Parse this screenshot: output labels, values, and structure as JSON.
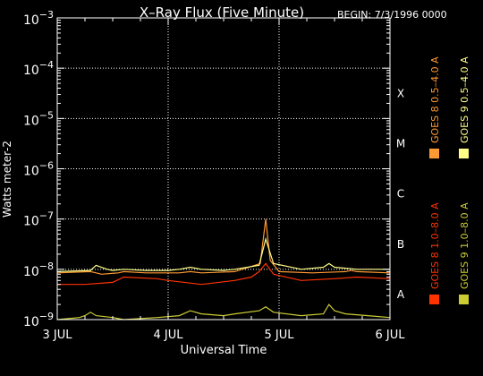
{
  "chart_data": {
    "type": "line",
    "title": "X–Ray Flux (Five Minute)",
    "begin_label": "BEGIN: 7/3/1996 0000",
    "xlabel": "Universal Time",
    "ylabel": "Watts meter‑2",
    "y_scale": "log",
    "ylim": [
      1e-09,
      0.001
    ],
    "x_ticks": [
      "3 JUL",
      "4 JUL",
      "5 JUL",
      "6 JUL"
    ],
    "y_ticks": [
      {
        "base": "10",
        "exp": "−3"
      },
      {
        "base": "10",
        "exp": "−4"
      },
      {
        "base": "10",
        "exp": "−5"
      },
      {
        "base": "10",
        "exp": "−6"
      },
      {
        "base": "10",
        "exp": "−7"
      },
      {
        "base": "10",
        "exp": "−8"
      },
      {
        "base": "10",
        "exp": "−9"
      }
    ],
    "flare_classes": [
      "X",
      "M",
      "C",
      "B",
      "A"
    ],
    "grid": true,
    "legend_position": "right-vertical",
    "colors": {
      "goes8_long": "#ff3300",
      "goes8_short": "#ff9933",
      "goes9_long": "#cccc33",
      "goes9_short": "#ffff88"
    },
    "legend": [
      {
        "label": "GOES 8 1.0–8.0 A",
        "color": "#ff3300"
      },
      {
        "label": "GOES 8 0.5–4.0 A",
        "color": "#ff9933"
      },
      {
        "label": "GOES 9 1.0–8.0 A",
        "color": "#cccc33"
      },
      {
        "label": "GOES 9 0.5–4.0 A",
        "color": "#ffff88"
      }
    ],
    "series": [
      {
        "name": "GOES 8 1.0–8.0 A",
        "color": "#ff3300",
        "x": [
          0,
          0.25,
          0.5,
          0.6,
          0.9,
          1.0,
          1.3,
          1.6,
          1.75,
          1.82,
          1.88,
          1.95,
          2.2,
          2.5,
          2.7,
          3.0
        ],
        "y": [
          5e-09,
          5e-09,
          5.5e-09,
          7e-09,
          6.5e-09,
          6e-09,
          5e-09,
          6e-09,
          7e-09,
          9e-09,
          1.3e-08,
          8e-09,
          6e-09,
          6.5e-09,
          7e-09,
          6.5e-09
        ]
      },
      {
        "name": "GOES 8 0.5–4.0 A",
        "color": "#ff9933",
        "x": [
          0,
          0.3,
          0.35,
          0.4,
          0.55,
          0.6,
          0.8,
          1.1,
          1.2,
          1.3,
          1.6,
          1.83,
          1.88,
          1.92,
          2.0,
          2.3,
          2.6,
          2.65,
          2.7,
          3.0
        ],
        "y": [
          8.5e-09,
          9e-09,
          8.5e-09,
          8e-09,
          8.5e-09,
          9e-09,
          8.5e-09,
          8.5e-09,
          9e-09,
          8.5e-09,
          9e-09,
          1.3e-08,
          1e-07,
          1.5e-08,
          9e-09,
          8.5e-09,
          9e-09,
          9.5e-09,
          9e-09,
          8.5e-09
        ]
      },
      {
        "name": "GOES 9 1.0–8.0 A",
        "color": "#cccc33",
        "x": [
          0,
          0.2,
          0.25,
          0.3,
          0.35,
          0.5,
          0.6,
          0.9,
          1.1,
          1.2,
          1.3,
          1.5,
          1.6,
          1.82,
          1.88,
          1.95,
          2.2,
          2.4,
          2.45,
          2.5,
          2.6,
          2.8,
          3.0
        ],
        "y": [
          1e-09,
          1.1e-09,
          1.2e-09,
          1.4e-09,
          1.2e-09,
          1.1e-09,
          1e-09,
          1.1e-09,
          1.2e-09,
          1.5e-09,
          1.3e-09,
          1.2e-09,
          1.3e-09,
          1.5e-09,
          1.8e-09,
          1.4e-09,
          1.2e-09,
          1.3e-09,
          2e-09,
          1.5e-09,
          1.3e-09,
          1.2e-09,
          1.1e-09
        ]
      },
      {
        "name": "GOES 9 0.5–4.0 A",
        "color": "#ffff88",
        "x": [
          0,
          0.3,
          0.35,
          0.45,
          0.5,
          0.6,
          0.8,
          1.0,
          1.1,
          1.2,
          1.3,
          1.5,
          1.6,
          1.82,
          1.88,
          1.95,
          2.2,
          2.4,
          2.45,
          2.5,
          2.7,
          3.0
        ],
        "y": [
          9e-09,
          9.5e-09,
          1.2e-08,
          1e-08,
          9.5e-09,
          1e-08,
          9.5e-09,
          9.5e-09,
          1e-08,
          1.1e-08,
          1e-08,
          9.5e-09,
          1e-08,
          1.2e-08,
          4e-08,
          1.3e-08,
          1e-08,
          1.1e-08,
          1.3e-08,
          1.1e-08,
          1e-08,
          1e-08
        ]
      }
    ]
  }
}
